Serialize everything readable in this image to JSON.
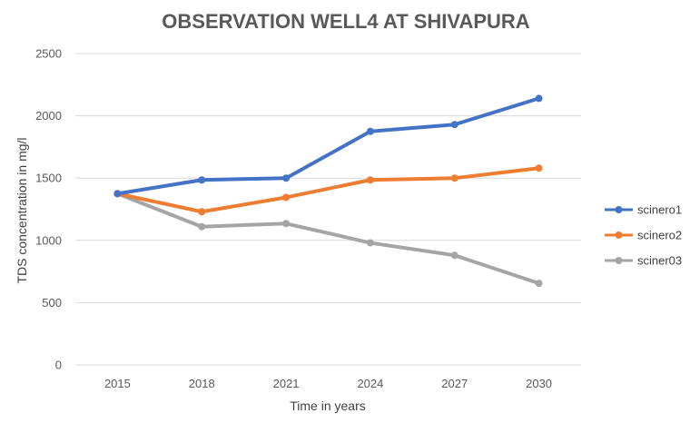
{
  "chart_data": {
    "type": "line",
    "title": "OBSERVATION WELL4 AT SHIVAPURA",
    "xlabel": "Time in years",
    "ylabel": "TDS concentration in mg/l",
    "categories": [
      "2015",
      "2018",
      "2021",
      "2024",
      "2027",
      "2030"
    ],
    "ylim": [
      0,
      2500
    ],
    "yticks": [
      0,
      500,
      1000,
      1500,
      2000,
      2500
    ],
    "grid": true,
    "legend_position": "right",
    "series": [
      {
        "name": "scinero1",
        "color": "#4472c4",
        "values": [
          1375,
          1485,
          1500,
          1875,
          1930,
          2140
        ]
      },
      {
        "name": "scinero2",
        "color": "#ed7d31",
        "values": [
          1375,
          1230,
          1345,
          1485,
          1500,
          1580
        ]
      },
      {
        "name": "sciner03",
        "color": "#a5a5a5",
        "values": [
          1375,
          1110,
          1135,
          980,
          880,
          655
        ]
      }
    ]
  }
}
